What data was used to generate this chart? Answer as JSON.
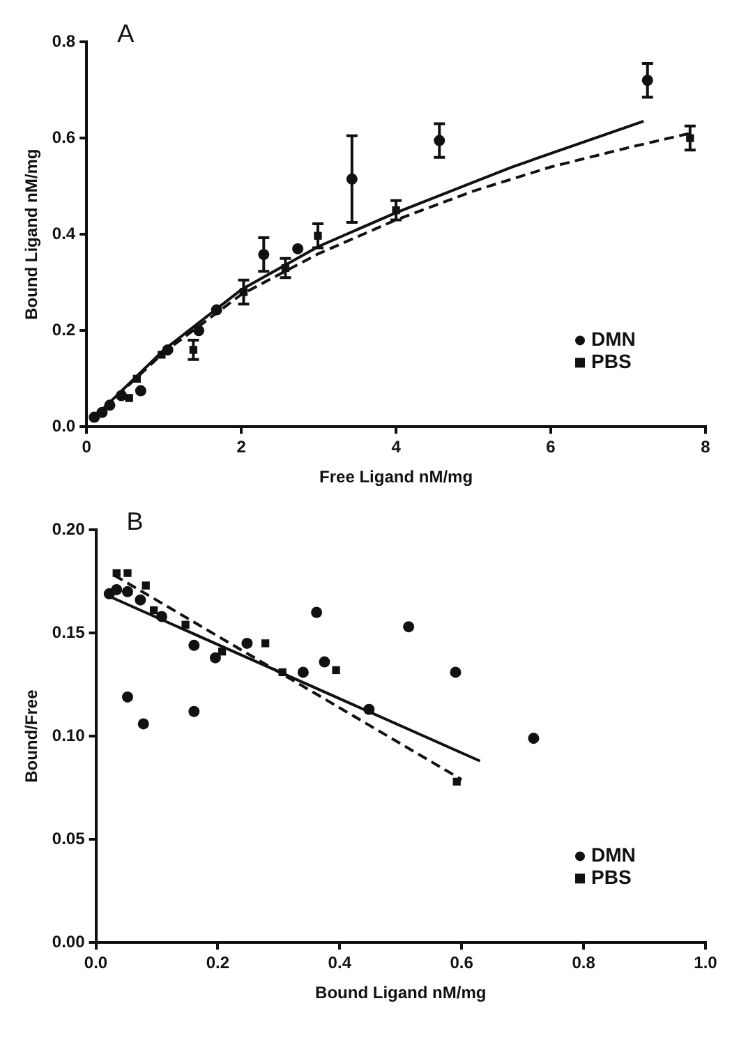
{
  "chart_data": [
    {
      "type": "scatter",
      "title": "A",
      "xlabel": "Free Ligand nM/mg",
      "ylabel": "Bound Ligand nM/mg",
      "xlim": [
        0,
        8
      ],
      "xticks": [
        0,
        2,
        4,
        6,
        8
      ],
      "ylim": [
        0,
        0.8
      ],
      "yticks": [
        {
          "value": 0,
          "label": "0.0"
        },
        0.2,
        0.4,
        0.6,
        0.8
      ],
      "grid": false,
      "legend": "bottom right",
      "series": [
        {
          "name": "DMN",
          "type": "scatter",
          "marker": "circle",
          "color": "#111111",
          "x": [
            0.1,
            0.2,
            0.3,
            0.45,
            0.7,
            1.05,
            1.45,
            1.68,
            2.29,
            2.73,
            3.43,
            4.56,
            7.25
          ],
          "values": [
            0.02,
            0.03,
            0.045,
            0.065,
            0.075,
            0.16,
            0.2,
            0.243,
            0.358,
            0.37,
            0.515,
            0.595,
            0.72
          ],
          "errors": [
            null,
            null,
            null,
            null,
            null,
            null,
            null,
            null,
            0.035,
            null,
            0.09,
            0.035,
            0.035
          ]
        },
        {
          "name": "PBS",
          "type": "scatter",
          "marker": "square",
          "color": "#111111",
          "x": [
            0.55,
            0.65,
            0.97,
            1.38,
            2.03,
            2.57,
            2.99,
            4.0,
            7.8
          ],
          "values": [
            0.06,
            0.1,
            0.15,
            0.16,
            0.28,
            0.33,
            0.397,
            0.45,
            0.6
          ],
          "errors": [
            null,
            null,
            null,
            0.02,
            0.025,
            0.02,
            0.025,
            0.02,
            0.025
          ]
        },
        {
          "type": "line",
          "line_style": "solid",
          "marker": "none",
          "color": "#111111",
          "x": [
            0.1,
            1,
            2,
            3,
            4,
            5.5,
            7.2
          ],
          "values": [
            0.02,
            0.16,
            0.285,
            0.375,
            0.445,
            0.54,
            0.635
          ]
        },
        {
          "type": "line",
          "line_style": "dashed",
          "marker": "none",
          "color": "#111111",
          "x": [
            0.1,
            1,
            2,
            3,
            4,
            5,
            6,
            7,
            7.8
          ],
          "values": [
            0.02,
            0.155,
            0.275,
            0.36,
            0.43,
            0.49,
            0.54,
            0.58,
            0.61
          ]
        }
      ]
    },
    {
      "type": "scatter",
      "title": "B",
      "xlabel": "Bound Ligand nM/mg",
      "ylabel": "Bound/Free",
      "xlim": [
        0,
        1
      ],
      "xticks": [
        {
          "value": 0,
          "label": "0.0"
        },
        0.2,
        0.4,
        0.6,
        0.8,
        {
          "value": 1,
          "label": "1.0"
        }
      ],
      "ylim": [
        0,
        0.2
      ],
      "yticks": [
        {
          "value": 0,
          "label": "0.00"
        },
        0.05,
        {
          "value": 0.1,
          "label": "0.10"
        },
        0.15,
        {
          "value": 0.2,
          "label": "0.20"
        }
      ],
      "grid": false,
      "legend": "bottom right",
      "series": [
        {
          "name": "DMN",
          "type": "scatter",
          "marker": "circle",
          "color": "#111111",
          "x": [
            0.022,
            0.034,
            0.052,
            0.052,
            0.078,
            0.073,
            0.108,
            0.161,
            0.161,
            0.196,
            0.248,
            0.34,
            0.362,
            0.375,
            0.448,
            0.513,
            0.59,
            0.718
          ],
          "values": [
            0.169,
            0.171,
            0.17,
            0.119,
            0.106,
            0.166,
            0.158,
            0.144,
            0.112,
            0.138,
            0.145,
            0.131,
            0.16,
            0.136,
            0.113,
            0.153,
            0.131,
            0.099
          ]
        },
        {
          "name": "PBS",
          "type": "scatter",
          "marker": "square",
          "color": "#111111",
          "x": [
            0.034,
            0.052,
            0.082,
            0.095,
            0.147,
            0.207,
            0.278,
            0.306,
            0.394,
            0.592
          ],
          "values": [
            0.179,
            0.179,
            0.173,
            0.161,
            0.154,
            0.141,
            0.145,
            0.131,
            0.132,
            0.078
          ]
        },
        {
          "type": "line",
          "line_style": "solid",
          "marker": "none",
          "color": "#111111",
          "x": [
            0.02,
            0.63
          ],
          "values": [
            0.168,
            0.088
          ]
        },
        {
          "type": "line",
          "line_style": "dashed",
          "marker": "none",
          "color": "#111111",
          "x": [
            0.03,
            0.6
          ],
          "values": [
            0.178,
            0.079
          ]
        }
      ]
    }
  ]
}
